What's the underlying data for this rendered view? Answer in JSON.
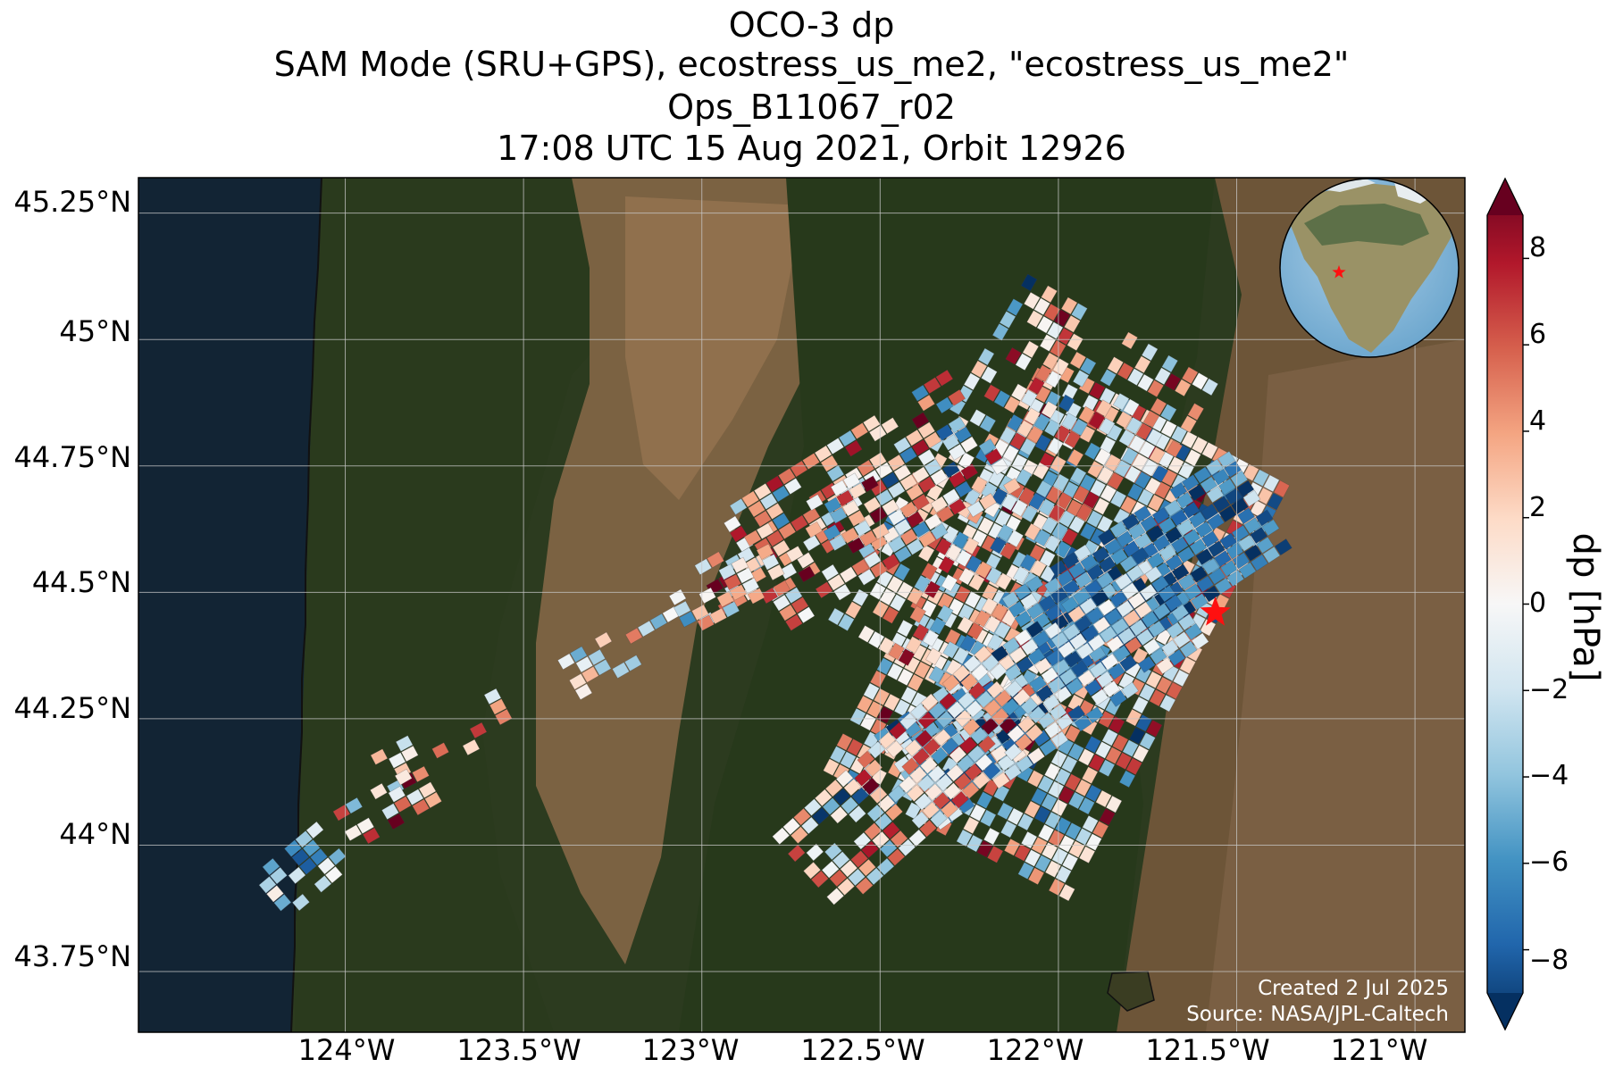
{
  "title": {
    "line1": "OCO-3 dp",
    "line2": "SAM Mode (SRU+GPS), ecostress_us_me2, \"ecostress_us_me2\"",
    "line3": "Ops_B11067_r02",
    "line4": "17:08 UTC 15 Aug 2021, Orbit 12926"
  },
  "map": {
    "lat_ticks": [
      "45.25°N",
      "45°N",
      "44.75°N",
      "44.5°N",
      "44.25°N",
      "44°N",
      "43.75°N"
    ],
    "lon_ticks": [
      "124°W",
      "123.5°W",
      "123°W",
      "122.5°W",
      "122°W",
      "121.5°W",
      "121°W"
    ],
    "lon_range": [
      -124.58,
      -120.86
    ],
    "lat_range": [
      43.63,
      45.32
    ],
    "target": {
      "lon": -121.56,
      "lat": 44.46,
      "marker": "red-star"
    },
    "credits": {
      "created": "Created 2 Jul 2025",
      "source": "Source: NASA/JPL-Caltech"
    },
    "inset_globe": {
      "marker": "red-star"
    }
  },
  "colorbar": {
    "label": "dp [hPa]",
    "ticks": [
      "8",
      "6",
      "4",
      "2",
      "0",
      "−2",
      "−4",
      "−6",
      "−8"
    ],
    "range": [
      -9,
      9
    ],
    "colormap": "RdBu_r",
    "colors": [
      "#053061",
      "#2166ac",
      "#4393c3",
      "#92c5de",
      "#d1e5f0",
      "#f7f7f7",
      "#fddbc7",
      "#f4a582",
      "#d6604d",
      "#b2182b",
      "#67001f"
    ]
  }
}
